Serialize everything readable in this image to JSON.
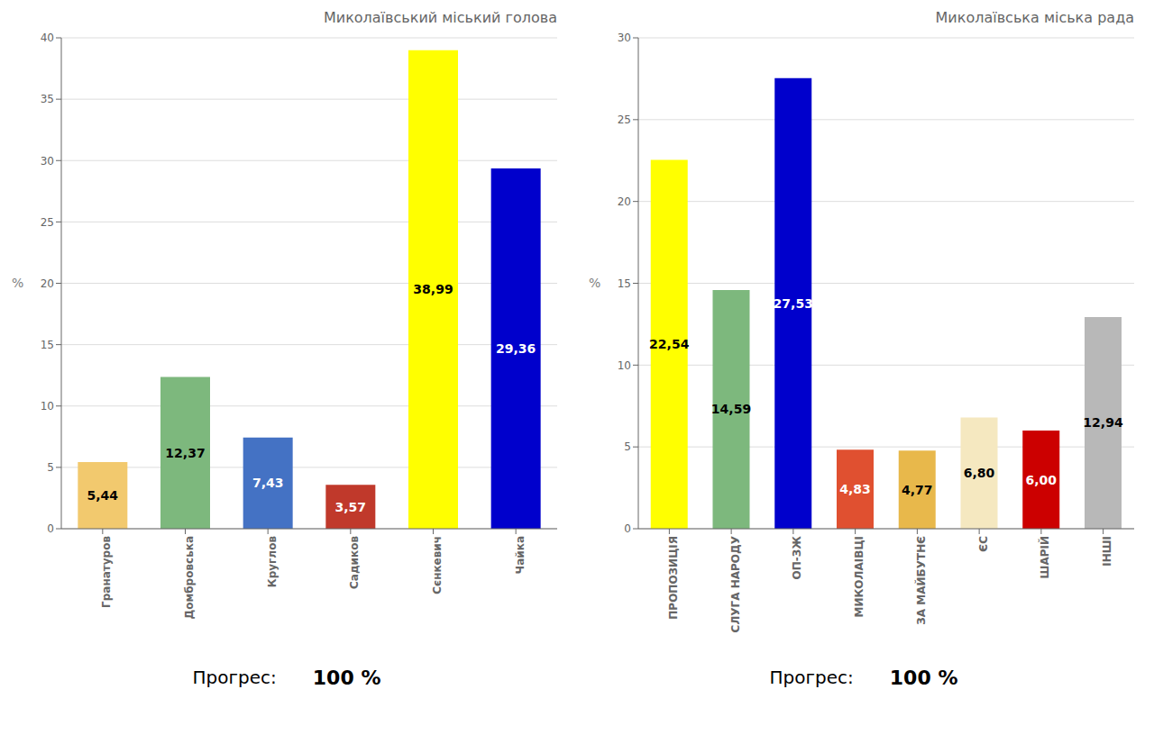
{
  "chart_data": [
    {
      "type": "bar",
      "title": "Миколаївський міський голова",
      "categories": [
        "Гранатуров",
        "Домбровська",
        "Круглов",
        "Садиков",
        "Сєнкевич",
        "Чайка"
      ],
      "values": [
        5.44,
        12.37,
        7.43,
        3.57,
        38.99,
        29.36
      ],
      "value_labels": [
        "5,44",
        "12,37",
        "7,43",
        "3,57",
        "38,99",
        "29,36"
      ],
      "data_labels": true,
      "colors": [
        "#f2c96e",
        "#7db87d",
        "#4472c4",
        "#c0392b",
        "#ffff00",
        "#0000cc"
      ],
      "ylim": [
        0,
        40
      ],
      "yticks": [
        0,
        5,
        10,
        15,
        20,
        25,
        30,
        35,
        40
      ],
      "ylabel": "%",
      "grid": true,
      "annotations": [
        "Прогрес:",
        "100 %"
      ]
    },
    {
      "type": "bar",
      "title": "Миколаївська міська рада",
      "categories": [
        "ПРОПОЗИЦІЯ",
        "СЛУГА НАРОДУ",
        "ОП-ЗЖ",
        "МИКОЛАІВЦІ",
        "ЗА МАЙБУТНЄ",
        "ЄС",
        "ШАРІЙ",
        "ІНШІ"
      ],
      "values": [
        22.54,
        14.59,
        27.53,
        4.83,
        4.77,
        6.8,
        6.0,
        12.94
      ],
      "value_labels": [
        "22,54",
        "14,59",
        "27,53",
        "4,83",
        "4,77",
        "6,80",
        "6,00",
        "12,94"
      ],
      "data_labels": true,
      "colors": [
        "#ffff00",
        "#7db87d",
        "#0000cc",
        "#e05030",
        "#e8b84b",
        "#f5e8c0",
        "#cc0000",
        "#b8b8b8"
      ],
      "ylim": [
        0,
        30
      ],
      "yticks": [
        0,
        5,
        10,
        15,
        20,
        25,
        30
      ],
      "ylabel": "%",
      "grid": true,
      "annotations": [
        "Прогрес:",
        "100 %"
      ]
    }
  ]
}
